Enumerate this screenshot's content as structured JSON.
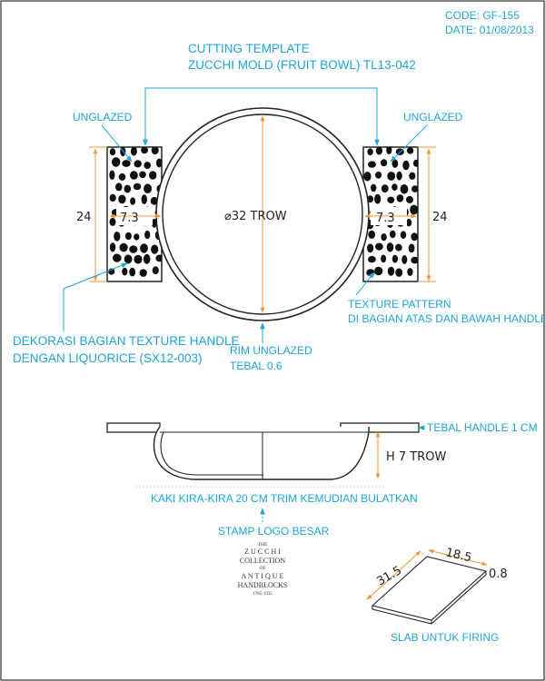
{
  "header": {
    "code": "CODE: GF-155",
    "date": "DATE: 01/08/2013"
  },
  "title": {
    "line1": "CUTTING TEMPLATE",
    "line2": "ZUCCHI MOLD (FRUIT BOWL)  TL13-042"
  },
  "top_view": {
    "unglazed_left": "UNGLAZED",
    "unglazed_right": "UNGLAZED",
    "diameter_label": "⌀32 TROW",
    "handle_height_left": "24",
    "handle_height_right": "24",
    "handle_depth_left": "7.3",
    "handle_depth_right": "7.3",
    "texture_note_1": "TEXTURE PATTERN",
    "texture_note_2": "DI BAGIAN ATAS DAN BAWAH HANDLE",
    "decor_note_1": "DEKORASI BAGIAN TEXTURE HANDLE",
    "decor_note_2": "DENGAN LIQUORICE (SX12-003)",
    "rim_note_1": "RIM UNGLAZED",
    "rim_note_2": "TEBAL 0.6"
  },
  "side_view": {
    "handle_thickness": "TEBAL HANDLE 1 CM",
    "height_label": "H 7 TROW",
    "foot_note": "KAKI KIRA-KIRA 20 CM TRIM KEMUDIAN BULATKAN"
  },
  "stamp": {
    "label": "STAMP LOGO BESAR",
    "logo_lines": [
      "THE",
      "Z U C C H I",
      "COLLECTION",
      "OF",
      "A N T I Q U E",
      "HANDBLOCKS",
      "1785-1935"
    ]
  },
  "slab": {
    "length": "31.5",
    "width": "18.5",
    "thickness": "0.8",
    "label": "SLAB UNTUK FIRING"
  },
  "colors": {
    "annotation": "#1fa3d8",
    "dimension": "#f0943a",
    "line": "#222222"
  }
}
